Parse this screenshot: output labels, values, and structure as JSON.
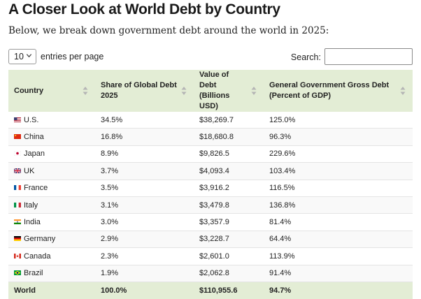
{
  "header": {
    "title": "A Closer Look at World Debt by Country",
    "subtitle": "Below, we break down government debt around the world in 2025:"
  },
  "controls": {
    "page_length": "10",
    "page_length_label": "entries per page",
    "search_label": "Search:",
    "search_value": ""
  },
  "table": {
    "columns": [
      {
        "line1": "Country",
        "line2": ""
      },
      {
        "line1": "Share of Global Debt",
        "line2": "2025"
      },
      {
        "line1": "Value of Debt",
        "line2": "(Billions USD)"
      },
      {
        "line1": "General Government Gross Debt",
        "line2": "(Percent of GDP)"
      }
    ],
    "rows": [
      {
        "flag": "us-flag-icon",
        "country": "U.S.",
        "share": "34.5%",
        "value": "$38,269.7",
        "pct_gdp": "125.0%"
      },
      {
        "flag": "china-flag-icon",
        "country": "China",
        "share": "16.8%",
        "value": "$18,680.8",
        "pct_gdp": "96.3%"
      },
      {
        "flag": "japan-flag-icon",
        "country": "Japan",
        "share": "8.9%",
        "value": "$9,826.5",
        "pct_gdp": "229.6%"
      },
      {
        "flag": "uk-flag-icon",
        "country": "UK",
        "share": "3.7%",
        "value": "$4,093.4",
        "pct_gdp": "103.4%"
      },
      {
        "flag": "france-flag-icon",
        "country": "France",
        "share": "3.5%",
        "value": "$3,916.2",
        "pct_gdp": "116.5%"
      },
      {
        "flag": "italy-flag-icon",
        "country": "Italy",
        "share": "3.1%",
        "value": "$3,479.8",
        "pct_gdp": "136.8%"
      },
      {
        "flag": "india-flag-icon",
        "country": "India",
        "share": "3.0%",
        "value": "$3,357.9",
        "pct_gdp": "81.4%"
      },
      {
        "flag": "germany-flag-icon",
        "country": "Germany",
        "share": "2.9%",
        "value": "$3,228.7",
        "pct_gdp": "64.4%"
      },
      {
        "flag": "canada-flag-icon",
        "country": "Canada",
        "share": "2.3%",
        "value": "$2,601.0",
        "pct_gdp": "113.9%"
      },
      {
        "flag": "brazil-flag-icon",
        "country": "Brazil",
        "share": "1.9%",
        "value": "$2,062.8",
        "pct_gdp": "91.4%"
      }
    ],
    "footer": {
      "country": "World",
      "share": "100.0%",
      "value": "$110,955.6",
      "pct_gdp": "94.7%"
    }
  },
  "colors": {
    "header_bg": "#e3edd5",
    "row_alt_bg": "#f9f9f9",
    "border": "#e4e4e4"
  }
}
